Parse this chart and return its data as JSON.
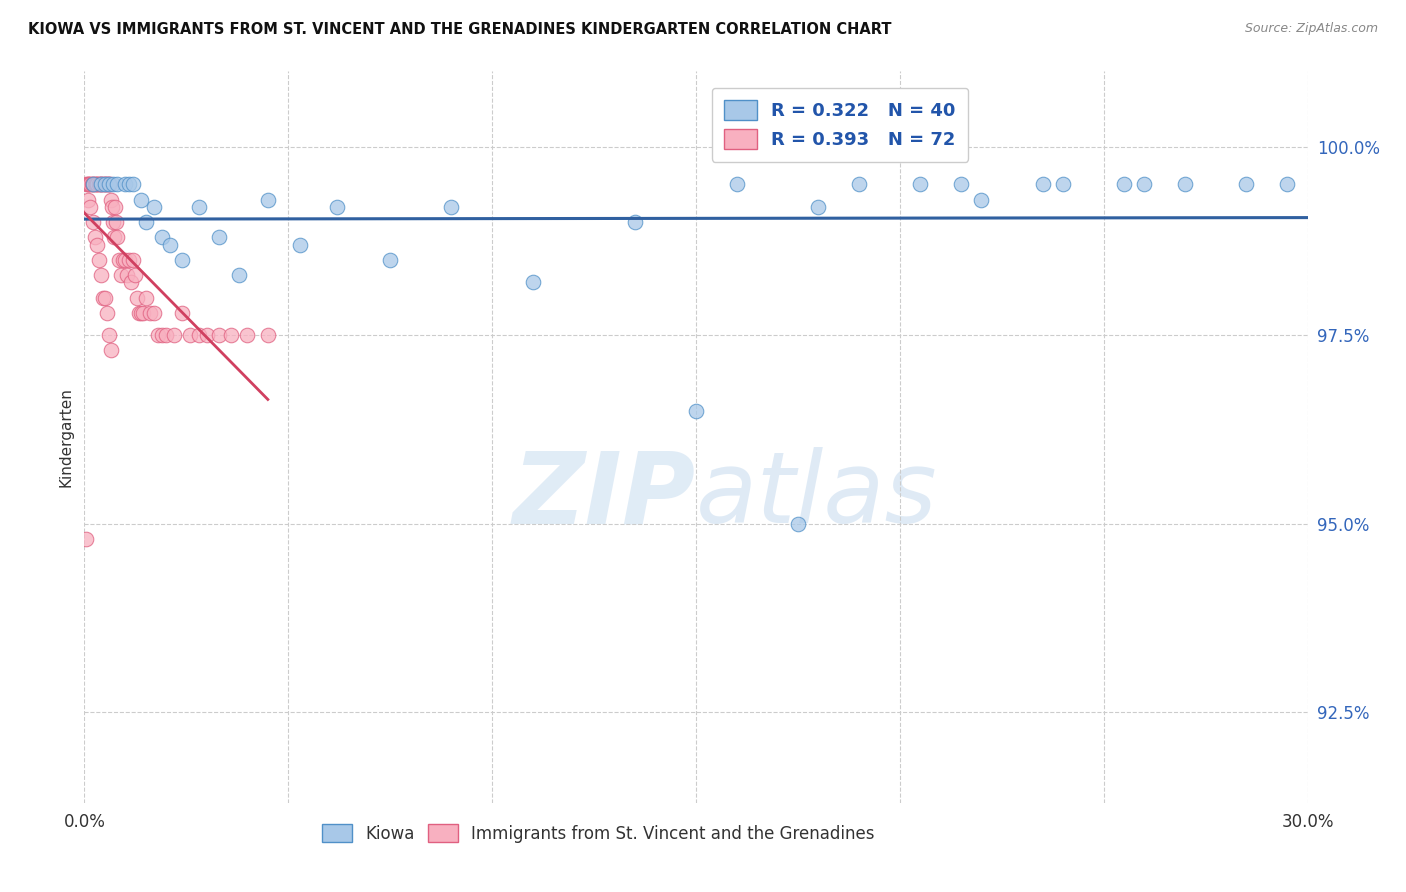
{
  "title": "KIOWA VS IMMIGRANTS FROM ST. VINCENT AND THE GRENADINES KINDERGARTEN CORRELATION CHART",
  "source": "Source: ZipAtlas.com",
  "xmin": 0.0,
  "xmax": 30.0,
  "ymin": 91.3,
  "ymax": 101.0,
  "ytick_values": [
    92.5,
    95.0,
    97.5,
    100.0
  ],
  "ytick_labels": [
    "92.5%",
    "95.0%",
    "97.5%",
    "100.0%"
  ],
  "ylabel": "Kindergarten",
  "blue_fill": "#a8c8e8",
  "blue_edge": "#5090c8",
  "blue_line": "#3060a0",
  "pink_fill": "#f8b0c0",
  "pink_edge": "#e06080",
  "pink_line": "#d04060",
  "legend_blue_label": "R = 0.322   N = 40",
  "legend_pink_label": "R = 0.393   N = 72",
  "legend_label_blue": "Kiowa",
  "legend_label_pink": "Immigrants from St. Vincent and the Grenadines",
  "watermark_zip": "ZIP",
  "watermark_atlas": "atlas",
  "blue_points_x": [
    0.2,
    0.4,
    0.5,
    0.6,
    0.7,
    0.8,
    1.0,
    1.1,
    1.2,
    1.4,
    1.5,
    1.7,
    1.9,
    2.1,
    2.4,
    2.8,
    3.3,
    3.8,
    4.5,
    5.3,
    6.2,
    7.5,
    9.0,
    11.0,
    13.5,
    16.0,
    18.0,
    20.5,
    22.0,
    24.0,
    25.5,
    27.0,
    28.5,
    29.5,
    15.0,
    17.5,
    19.0,
    21.5,
    23.5,
    26.0
  ],
  "blue_points_y": [
    99.5,
    99.5,
    99.5,
    99.5,
    99.5,
    99.5,
    99.5,
    99.5,
    99.5,
    99.3,
    99.0,
    99.2,
    98.8,
    98.7,
    98.5,
    99.2,
    98.8,
    98.3,
    99.3,
    98.7,
    99.2,
    98.5,
    99.2,
    98.2,
    99.0,
    99.5,
    99.2,
    99.5,
    99.3,
    99.5,
    99.5,
    99.5,
    99.5,
    99.5,
    96.5,
    95.0,
    99.5,
    99.5,
    99.5,
    99.5
  ],
  "pink_points_x": [
    0.05,
    0.08,
    0.1,
    0.12,
    0.15,
    0.18,
    0.2,
    0.22,
    0.25,
    0.28,
    0.3,
    0.32,
    0.35,
    0.38,
    0.4,
    0.42,
    0.45,
    0.48,
    0.5,
    0.52,
    0.55,
    0.58,
    0.6,
    0.62,
    0.65,
    0.68,
    0.7,
    0.72,
    0.75,
    0.78,
    0.8,
    0.85,
    0.9,
    0.95,
    1.0,
    1.05,
    1.1,
    1.15,
    1.2,
    1.25,
    1.3,
    1.35,
    1.4,
    1.45,
    1.5,
    1.6,
    1.7,
    1.8,
    1.9,
    2.0,
    2.2,
    2.4,
    2.6,
    2.8,
    3.0,
    3.3,
    3.6,
    4.0,
    4.5,
    0.1,
    0.15,
    0.2,
    0.25,
    0.3,
    0.35,
    0.4,
    0.45,
    0.5,
    0.55,
    0.6,
    0.65,
    0.05
  ],
  "pink_points_y": [
    99.5,
    99.5,
    99.5,
    99.5,
    99.5,
    99.5,
    99.5,
    99.5,
    99.5,
    99.5,
    99.5,
    99.5,
    99.5,
    99.5,
    99.5,
    99.5,
    99.5,
    99.5,
    99.5,
    99.5,
    99.5,
    99.5,
    99.5,
    99.5,
    99.3,
    99.2,
    99.0,
    98.8,
    99.2,
    99.0,
    98.8,
    98.5,
    98.3,
    98.5,
    98.5,
    98.3,
    98.5,
    98.2,
    98.5,
    98.3,
    98.0,
    97.8,
    97.8,
    97.8,
    98.0,
    97.8,
    97.8,
    97.5,
    97.5,
    97.5,
    97.5,
    97.8,
    97.5,
    97.5,
    97.5,
    97.5,
    97.5,
    97.5,
    97.5,
    99.3,
    99.2,
    99.0,
    98.8,
    98.7,
    98.5,
    98.3,
    98.0,
    98.0,
    97.8,
    97.5,
    97.3,
    94.8
  ]
}
